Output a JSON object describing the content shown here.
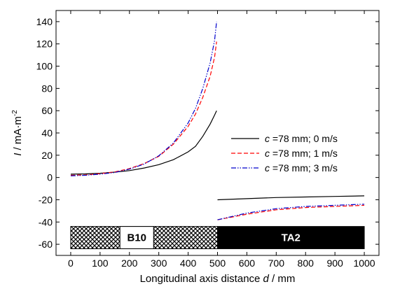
{
  "chart_data": {
    "type": "line",
    "xlabel_main": "Longitudinal axis distance ",
    "xlabel_var": "d",
    "xlabel_unit": " / mm",
    "ylabel_var": "I",
    "ylabel_unit": " / mA·m",
    "ylabel_exp": "-2",
    "xlim": [
      -50,
      1050
    ],
    "ylim": [
      -70,
      150
    ],
    "xticks": [
      0,
      100,
      200,
      300,
      400,
      500,
      600,
      700,
      800,
      900,
      1000
    ],
    "yticks": [
      -60,
      -40,
      -20,
      0,
      20,
      40,
      60,
      80,
      100,
      120,
      140
    ],
    "grid": false,
    "legend_position": "right-middle",
    "series": [
      {
        "legend_prefix": "c",
        "legend_text": " =78 mm; 0 m/s",
        "color": "#000000",
        "dash": "solid",
        "points": [
          [
            0,
            3
          ],
          [
            50,
            3.2
          ],
          [
            100,
            3.8
          ],
          [
            150,
            4.8
          ],
          [
            200,
            6.2
          ],
          [
            250,
            8.5
          ],
          [
            300,
            11.5
          ],
          [
            350,
            16
          ],
          [
            400,
            23
          ],
          [
            425,
            28
          ],
          [
            450,
            37
          ],
          [
            475,
            48
          ],
          [
            490,
            56
          ],
          [
            497,
            60
          ]
        ],
        "points2": [
          [
            500,
            -20
          ],
          [
            600,
            -19
          ],
          [
            700,
            -18
          ],
          [
            800,
            -17.5
          ],
          [
            900,
            -17
          ],
          [
            1000,
            -16.5
          ]
        ]
      },
      {
        "legend_prefix": "c",
        "legend_text": " =78 mm; 1 m/s",
        "color": "#ff0000",
        "dash": "dashed",
        "points": [
          [
            0,
            2
          ],
          [
            50,
            2.3
          ],
          [
            100,
            3.5
          ],
          [
            150,
            5
          ],
          [
            200,
            8
          ],
          [
            250,
            12.5
          ],
          [
            300,
            19
          ],
          [
            350,
            30
          ],
          [
            400,
            46
          ],
          [
            425,
            57
          ],
          [
            450,
            72
          ],
          [
            475,
            91
          ],
          [
            490,
            108
          ],
          [
            497,
            122
          ]
        ],
        "points2": [
          [
            500,
            -38
          ],
          [
            600,
            -33
          ],
          [
            700,
            -29
          ],
          [
            800,
            -27
          ],
          [
            900,
            -26
          ],
          [
            1000,
            -25
          ]
        ]
      },
      {
        "legend_prefix": "c",
        "legend_text": " =78 mm; 3 m/s",
        "color": "#0000cc",
        "dash": "dashdotdot",
        "points": [
          [
            0,
            1.5
          ],
          [
            50,
            2
          ],
          [
            100,
            3
          ],
          [
            150,
            4.5
          ],
          [
            200,
            7.5
          ],
          [
            250,
            12
          ],
          [
            300,
            19.5
          ],
          [
            350,
            31
          ],
          [
            400,
            49
          ],
          [
            425,
            62
          ],
          [
            450,
            80
          ],
          [
            475,
            103
          ],
          [
            490,
            123
          ],
          [
            497,
            140
          ]
        ],
        "points2": [
          [
            500,
            -38
          ],
          [
            600,
            -32
          ],
          [
            700,
            -28
          ],
          [
            800,
            -26
          ],
          [
            900,
            -25
          ],
          [
            1000,
            -24
          ]
        ]
      }
    ],
    "regions": [
      {
        "label": "B10",
        "x_start": 0,
        "x_end": 500,
        "style": "hatched",
        "label_x": 225
      },
      {
        "label": "TA2",
        "x_start": 500,
        "x_end": 1000,
        "style": "solid",
        "label_x": 750
      }
    ],
    "region_y_range": [
      -64,
      -44
    ]
  }
}
